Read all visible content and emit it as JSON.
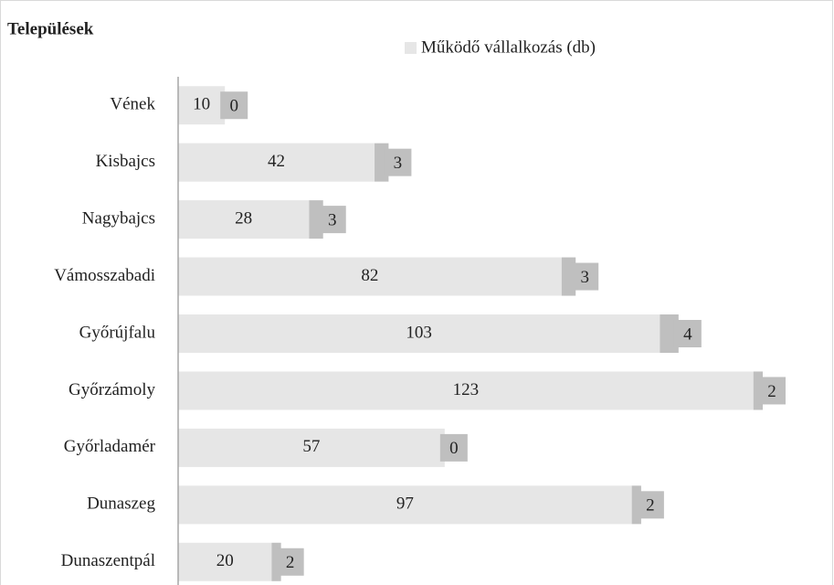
{
  "chart_data": {
    "type": "stacked-barh",
    "title": "Települések",
    "categories": [
      "Vének",
      "Kisbajcs",
      "Nagybajcs",
      "Vámosszabadi",
      "Győrújfalu",
      "Győrzámoly",
      "Győrladamér",
      "Dunaszeg",
      "Dunaszentpál"
    ],
    "series": [
      {
        "name": "Működő vállalkozás (db)",
        "color": "#e6e6e6",
        "values": [
          10,
          42,
          28,
          82,
          103,
          123,
          57,
          97,
          20
        ]
      },
      {
        "color": "#bfbfbf",
        "values": [
          0,
          3,
          3,
          3,
          4,
          2,
          0,
          2,
          2
        ]
      }
    ],
    "xlim": [
      0,
      125
    ],
    "legend": "top"
  }
}
